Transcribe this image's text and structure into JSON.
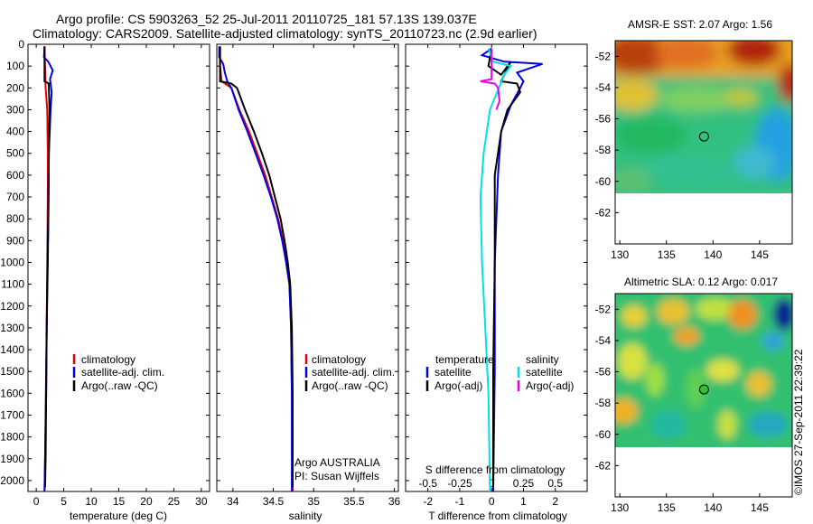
{
  "header": {
    "line1": "Argo profile: CS 5903263_52 25-Jul-2011 20110725_181 57.13S 139.037E",
    "line2": "Climatology: CARS2009. Satellite-adjusted climatology: synTS_20110723.nc (2.9d earlier)"
  },
  "colors": {
    "climatology": "#e60000",
    "satellite": "#0000e6",
    "argo": "#000000",
    "sal_satellite": "#00e0e6",
    "sal_argo": "#e600e6"
  },
  "temperature_panel": {
    "xlabel": "temperature (deg C)",
    "legend": [
      "climatology",
      "satellite-adj. clim.",
      "Argo(..raw -QC)"
    ]
  },
  "salinity_panel": {
    "xlabel": "salinity",
    "legend": [
      "climatology",
      "satellite-adj. clim.",
      "Argo(..raw -QC)"
    ],
    "note1": "Argo AUSTRALIA",
    "note2": "PI: Susan Wijffels"
  },
  "diff_panel": {
    "xlabel": "T difference from climatology",
    "slabel": "S difference from climatology",
    "legend_temp_title": "temperature",
    "legend_sal_title": "salinity",
    "legend_temp": [
      "satellite",
      "Argo(-adj)"
    ],
    "legend_sal": [
      "satellite",
      "Argo(-adj)"
    ]
  },
  "sst_map": {
    "title": "AMSR-E SST: 2.07 Argo: 1.56"
  },
  "sla_map": {
    "title": "Altimetric SLA: 0.12 Argo: 0.017"
  },
  "footer": {
    "stamp": "©IMOS 27-Sep-2011 22:39:22"
  },
  "chart_data": [
    {
      "type": "line",
      "name": "temperature profile",
      "xlabel": "temperature (deg C)",
      "ylabel": "",
      "xlim": [
        -1.5,
        31.5
      ],
      "ylim": [
        2050,
        0
      ],
      "xticks": [
        0,
        5,
        10,
        15,
        20,
        25,
        30
      ],
      "yticks": [
        0,
        100,
        200,
        300,
        400,
        500,
        600,
        700,
        800,
        900,
        1000,
        1100,
        1200,
        1300,
        1400,
        1500,
        1600,
        1700,
        1800,
        1900,
        2000
      ],
      "series": [
        {
          "name": "climatology",
          "color": "#e60000",
          "points": [
            [
              1.5,
              10
            ],
            [
              1.6,
              100
            ],
            [
              1.7,
              200
            ],
            [
              2.0,
              300
            ],
            [
              2.1,
              500
            ],
            [
              2.1,
              700
            ],
            [
              2.0,
              1000
            ],
            [
              1.9,
              1300
            ],
            [
              1.8,
              1600
            ],
            [
              1.6,
              1900
            ],
            [
              1.5,
              2050
            ]
          ]
        },
        {
          "name": "satellite-adj. clim.",
          "color": "#0000e6",
          "points": [
            [
              1.5,
              10
            ],
            [
              1.4,
              60
            ],
            [
              2.2,
              80
            ],
            [
              3.0,
              120
            ],
            [
              2.5,
              160
            ],
            [
              2.8,
              220
            ],
            [
              2.6,
              300
            ],
            [
              2.3,
              500
            ],
            [
              2.2,
              800
            ],
            [
              2.0,
              1100
            ],
            [
              1.8,
              1500
            ],
            [
              1.6,
              1900
            ],
            [
              1.5,
              2050
            ]
          ]
        },
        {
          "name": "Argo(..raw -QC)",
          "color": "#000000",
          "points": [
            [
              1.5,
              10
            ],
            [
              1.5,
              170
            ],
            [
              2.3,
              180
            ],
            [
              2.3,
              200
            ],
            [
              2.4,
              300
            ],
            [
              2.3,
              500
            ],
            [
              2.2,
              800
            ],
            [
              2.1,
              1000
            ],
            [
              1.9,
              1300
            ],
            [
              1.8,
              1600
            ],
            [
              1.7,
              1900
            ],
            [
              1.6,
              2030
            ]
          ]
        }
      ]
    },
    {
      "type": "line",
      "name": "salinity profile",
      "xlabel": "salinity",
      "ylabel": "",
      "xlim": [
        33.8,
        36.05
      ],
      "ylim": [
        2050,
        0
      ],
      "xticks": [
        34,
        34.5,
        35,
        35.5,
        36
      ],
      "tick_labels": [
        "34",
        "34.5",
        "35",
        "35.5",
        "36"
      ],
      "series": [
        {
          "name": "climatology",
          "color": "#e60000",
          "points": [
            [
              33.84,
              10
            ],
            [
              33.84,
              100
            ],
            [
              33.86,
              170
            ],
            [
              33.98,
              200
            ],
            [
              34.08,
              300
            ],
            [
              34.2,
              400
            ],
            [
              34.3,
              500
            ],
            [
              34.4,
              600
            ],
            [
              34.48,
              700
            ],
            [
              34.56,
              800
            ],
            [
              34.62,
              900
            ],
            [
              34.66,
              1000
            ],
            [
              34.7,
              1100
            ],
            [
              34.72,
              1300
            ],
            [
              34.73,
              1600
            ],
            [
              34.74,
              2050
            ]
          ]
        },
        {
          "name": "satellite-adj. clim.",
          "color": "#0000e6",
          "points": [
            [
              33.83,
              10
            ],
            [
              33.83,
              60
            ],
            [
              33.88,
              90
            ],
            [
              33.9,
              130
            ],
            [
              33.93,
              170
            ],
            [
              33.98,
              200
            ],
            [
              34.07,
              300
            ],
            [
              34.18,
              400
            ],
            [
              34.28,
              500
            ],
            [
              34.38,
              600
            ],
            [
              34.47,
              700
            ],
            [
              34.55,
              800
            ],
            [
              34.61,
              900
            ],
            [
              34.66,
              1000
            ],
            [
              34.7,
              1100
            ],
            [
              34.72,
              1300
            ],
            [
              34.73,
              1600
            ],
            [
              34.73,
              2050
            ]
          ]
        },
        {
          "name": "Argo(..raw -QC)",
          "color": "#000000",
          "points": [
            [
              33.84,
              10
            ],
            [
              33.84,
              170
            ],
            [
              33.98,
              180
            ],
            [
              34.05,
              200
            ],
            [
              34.15,
              300
            ],
            [
              34.26,
              400
            ],
            [
              34.36,
              500
            ],
            [
              34.45,
              600
            ],
            [
              34.52,
              700
            ],
            [
              34.59,
              800
            ],
            [
              34.64,
              900
            ],
            [
              34.68,
              1000
            ],
            [
              34.71,
              1100
            ],
            [
              34.73,
              1300
            ],
            [
              34.74,
              1600
            ],
            [
              34.74,
              2030
            ]
          ]
        }
      ]
    },
    {
      "type": "line",
      "name": "difference from climatology",
      "xlabel": "T difference from climatology",
      "x2label": "S difference from climatology",
      "xlim": [
        -2.7,
        3.0
      ],
      "ylim": [
        2050,
        0
      ],
      "xticks": [
        -2,
        -1,
        0,
        1,
        2
      ],
      "s_ticks": [
        -0.5,
        -0.25,
        0,
        0.25,
        0.5
      ],
      "series": [
        {
          "name": "temperature satellite",
          "color": "#0000e6",
          "points": [
            [
              0,
              20
            ],
            [
              -0.3,
              50
            ],
            [
              0.4,
              80
            ],
            [
              1.6,
              90
            ],
            [
              0.8,
              130
            ],
            [
              1.0,
              170
            ],
            [
              0.9,
              200
            ],
            [
              0.6,
              280
            ],
            [
              0.3,
              400
            ],
            [
              0.2,
              600
            ],
            [
              0.1,
              1000
            ],
            [
              0.1,
              1500
            ],
            [
              0.05,
              2050
            ]
          ]
        },
        {
          "name": "temperature Argo(-adj)",
          "color": "#000000",
          "points": [
            [
              0,
              20
            ],
            [
              -0.1,
              100
            ],
            [
              0.3,
              140
            ],
            [
              0.6,
              80
            ],
            [
              0.3,
              170
            ],
            [
              0.8,
              180
            ],
            [
              0.9,
              220
            ],
            [
              0.5,
              300
            ],
            [
              0.3,
              400
            ],
            [
              0.1,
              600
            ],
            [
              0.1,
              1000
            ],
            [
              0.05,
              1500
            ],
            [
              0.05,
              2030
            ]
          ]
        },
        {
          "name": "salinity satellite",
          "color": "#00e0e6",
          "points": [
            [
              -0.1,
              20
            ],
            [
              0.05,
              80
            ],
            [
              0.6,
              100
            ],
            [
              0.4,
              140
            ],
            [
              -0.05,
              300
            ],
            [
              -0.25,
              500
            ],
            [
              -0.35,
              700
            ],
            [
              -0.3,
              1000
            ],
            [
              -0.2,
              1300
            ],
            [
              -0.1,
              1600
            ],
            [
              -0.05,
              2050
            ]
          ]
        },
        {
          "name": "salinity Argo(-adj)",
          "color": "#e600e6",
          "points": [
            [
              0,
              20
            ],
            [
              0,
              160
            ],
            [
              -0.35,
              170
            ],
            [
              0.1,
              180
            ],
            [
              0.2,
              200
            ],
            [
              0.25,
              260
            ],
            [
              0.15,
              300
            ]
          ]
        }
      ]
    },
    {
      "type": "heatmap",
      "name": "AMSR-E SST map",
      "title": "AMSR-E SST: 2.07 Argo: 1.56",
      "xlim": [
        129.5,
        148.5
      ],
      "ylim": [
        -64,
        -51
      ],
      "xticks": [
        130,
        135,
        140,
        145
      ],
      "yticks": [
        -52,
        -54,
        -56,
        -58,
        -60,
        -62
      ],
      "data_extent_lat": [
        -60,
        -51
      ],
      "argo_position": {
        "lon": 139.037,
        "lat": -57.13
      }
    },
    {
      "type": "heatmap",
      "name": "Altimetric SLA map",
      "title": "Altimetric SLA: 0.12 Argo: 0.017",
      "xlim": [
        129.5,
        148.5
      ],
      "ylim": [
        -64,
        -51
      ],
      "xticks": [
        130,
        135,
        140,
        145
      ],
      "yticks": [
        -52,
        -54,
        -56,
        -58,
        -60,
        -62
      ],
      "data_extent_lat": [
        -60,
        -51
      ],
      "argo_position": {
        "lon": 139.037,
        "lat": -57.13
      }
    }
  ]
}
